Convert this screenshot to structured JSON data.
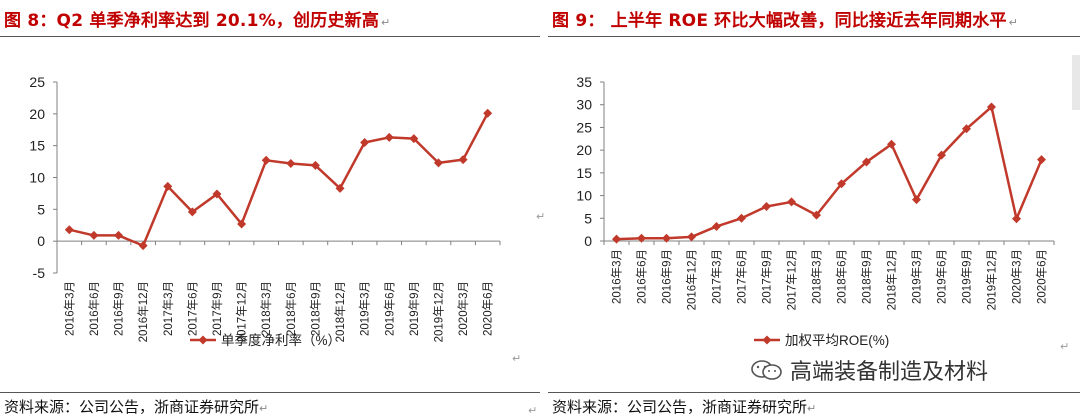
{
  "left": {
    "title": "图 8：Q2 单季净利率达到 20.1%，创历史新高",
    "source": "资料来源：公司公告，浙商证券研究所"
  },
  "right": {
    "title": "图 9： 上半年 ROE 环比大幅改善，同比接近去年同期水平",
    "source": "资料来源：公司公告，浙商证券研究所"
  },
  "watermark": "高端装备制造及材料",
  "colors": {
    "series": "#c0392b",
    "title": "#c00000",
    "axis": "#808080"
  },
  "chart_data": [
    {
      "type": "line",
      "title": "",
      "categories": [
        "2016年3月",
        "2016年6月",
        "2016年9月",
        "2016年12月",
        "2017年3月",
        "2017年6月",
        "2017年9月",
        "2017年12月",
        "2018年3月",
        "2018年6月",
        "2018年9月",
        "2018年12月",
        "2019年3月",
        "2019年6月",
        "2019年9月",
        "2019年12月",
        "2020年3月",
        "2020年6月"
      ],
      "series": [
        {
          "name": "单季度净利率（%）",
          "values": [
            1.8,
            0.9,
            0.9,
            -0.7,
            8.6,
            4.6,
            7.4,
            2.7,
            12.7,
            12.2,
            11.9,
            8.3,
            15.5,
            16.3,
            16.1,
            12.3,
            12.8,
            20.1
          ]
        }
      ],
      "ylim": [
        -5,
        25
      ],
      "yticks": [
        -5,
        0,
        5,
        10,
        15,
        20,
        25
      ],
      "ytick_labels": [
        "-5",
        "0",
        "5",
        "10",
        "15",
        "20",
        "25"
      ],
      "xlabel": "",
      "ylabel": "",
      "legend": "bottom"
    },
    {
      "type": "line",
      "title": "",
      "categories": [
        "2016年3月",
        "2016年6月",
        "2016年9月",
        "2016年12月",
        "2017年3月",
        "2017年6月",
        "2017年9月",
        "2017年12月",
        "2018年3月",
        "2018年6月",
        "2018年9月",
        "2018年12月",
        "2019年3月",
        "2019年6月",
        "2019年9月",
        "2019年12月",
        "2020年3月",
        "2020年6月"
      ],
      "series": [
        {
          "name": "加权平均ROE(%)",
          "values": [
            0.4,
            0.6,
            0.6,
            0.9,
            3.2,
            5.0,
            7.6,
            8.6,
            5.7,
            12.6,
            17.4,
            21.3,
            9.1,
            18.9,
            24.7,
            29.5,
            4.9,
            17.9
          ]
        }
      ],
      "ylim": [
        0,
        35
      ],
      "yticks": [
        0,
        5,
        10,
        15,
        20,
        25,
        30,
        35
      ],
      "ytick_labels": [
        "0",
        "5",
        "10",
        "15",
        "20",
        "25",
        "30",
        "35"
      ],
      "xlabel": "",
      "ylabel": "",
      "legend": "bottom"
    }
  ]
}
